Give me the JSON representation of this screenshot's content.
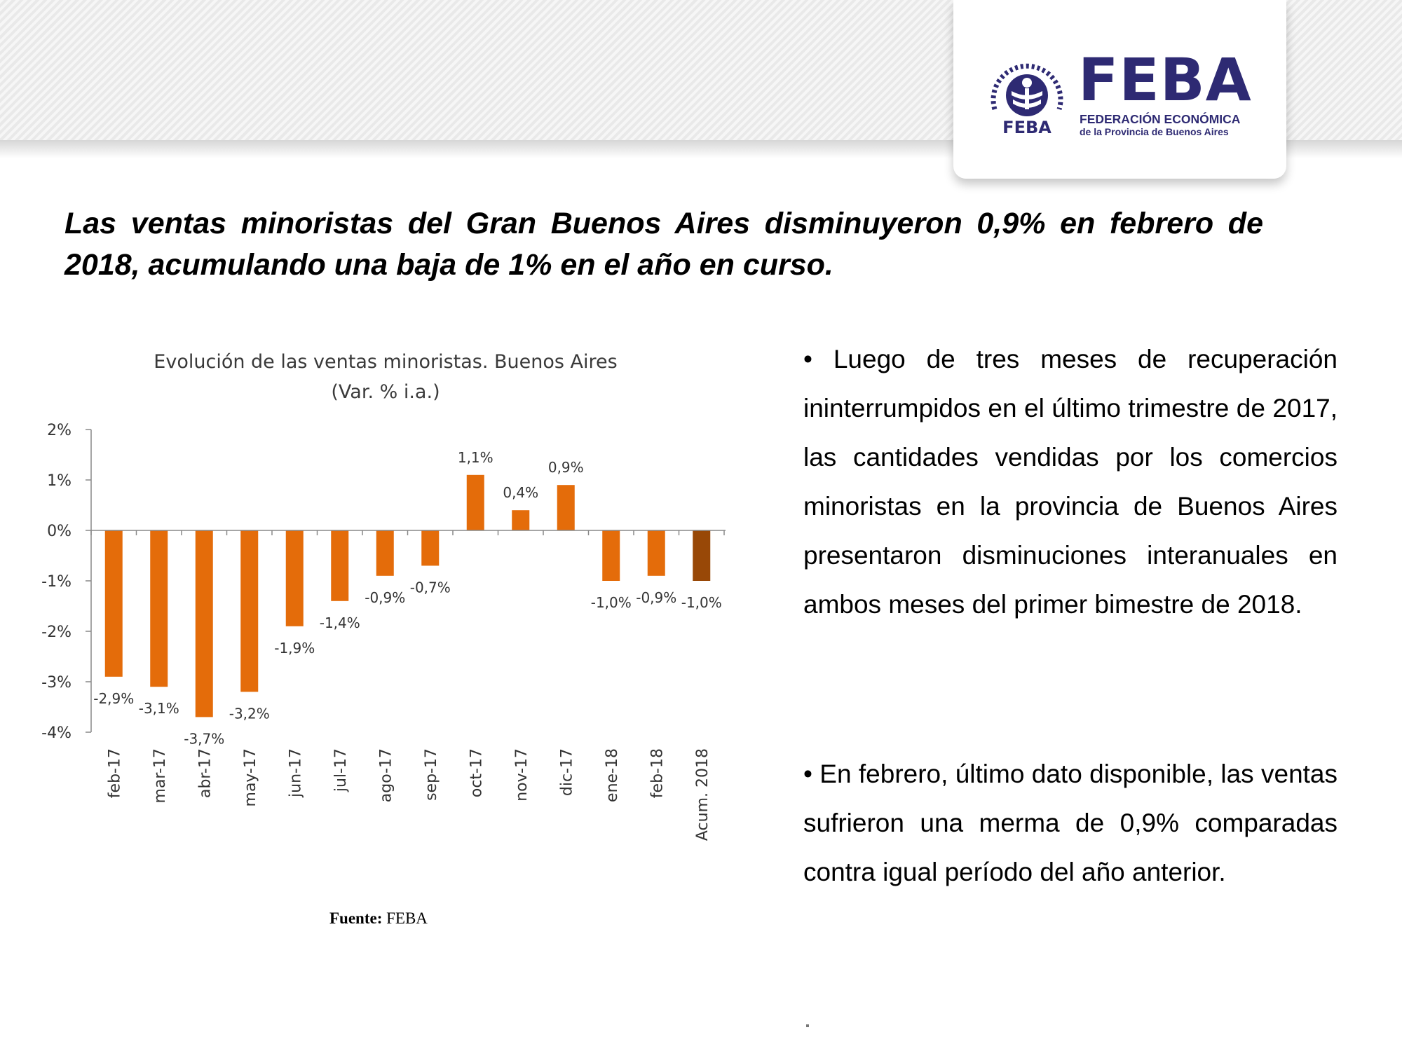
{
  "logo": {
    "emblem_icon": "feba-gear-emblem-icon",
    "emblem_text": "FEBA",
    "wordmark": "FEBA",
    "subtitle_line1": "FEDERACIÓN ECONÓMICA",
    "subtitle_line2": "de la Provincia de Buenos Aires",
    "color": "#2e2a73"
  },
  "headline": "Las ventas minoristas del Gran Buenos Aires disminuyeron 0,9% en febrero de 2018, acumulando una baja de 1% en el año en curso.",
  "chart_data": {
    "type": "bar",
    "title": "Evolución de las ventas minoristas. Buenos Aires",
    "subtitle": "(Var. % i.a.)",
    "categories": [
      "feb-17",
      "mar-17",
      "abr-17",
      "may-17",
      "jun-17",
      "jul-17",
      "ago-17",
      "sep-17",
      "oct-17",
      "nov-17",
      "dic-17",
      "ene-18",
      "feb-18",
      "Acum. 2018"
    ],
    "values": [
      -2.9,
      -3.1,
      -3.7,
      -3.2,
      -1.9,
      -1.4,
      -0.9,
      -0.7,
      1.1,
      0.4,
      0.9,
      -1.0,
      -0.9,
      -1.0
    ],
    "data_labels": [
      "-2,9%",
      "-3,1%",
      "-3,7%",
      "-3,2%",
      "-1,9%",
      "-1,4%",
      "-0,9%",
      "-0,7%",
      "1,1%",
      "0,4%",
      "0,9%",
      "-1,0%",
      "-0,9%",
      "-1,0%"
    ],
    "y_ticks": [
      2,
      1,
      0,
      -1,
      -2,
      -3,
      -4
    ],
    "y_tick_labels": [
      "2%",
      "1%",
      "0%",
      "-1%",
      "-2%",
      "-3%",
      "-4%"
    ],
    "ylim": [
      -4,
      2
    ],
    "grid": false,
    "legend": "none",
    "bar_color": "#e46c0a",
    "highlight_color": "#984807",
    "highlight_index": 13
  },
  "source": {
    "label": "Fuente:",
    "value": "FEBA"
  },
  "paragraphs": [
    "• Luego de tres meses de recuperación ininterrumpidos en el último trimestre de 2017, las cantidades vendidas por los comercios minoristas en la provincia de Buenos Aires presentaron disminuciones interanuales en ambos meses del primer bimestre de 2018.",
    "• En febrero, último dato disponible, las ventas sufrieron una merma de 0,9% comparadas contra igual período del año anterior."
  ]
}
